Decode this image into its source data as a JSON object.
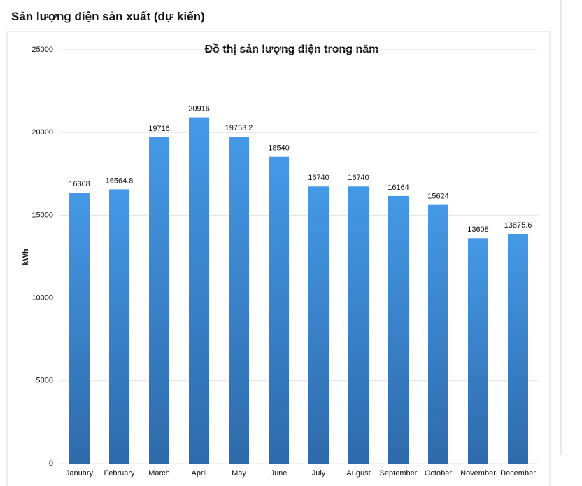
{
  "header": {
    "title": "Sản lượng điện sản xuất (dự kiến)"
  },
  "chart_data": {
    "type": "bar",
    "title": "Đồ thị sản lượng điện trong năm",
    "y_label": "kWh",
    "categories": [
      "January",
      "February",
      "March",
      "April",
      "May",
      "June",
      "July",
      "August",
      "September",
      "October",
      "November",
      "December"
    ],
    "values": [
      16368,
      16564.8,
      19716,
      20916,
      19753.2,
      18540,
      16740,
      16740,
      16164,
      15624,
      13608,
      13875.6
    ],
    "color": "#4599e6",
    "ylim": [
      0,
      25000
    ],
    "yticks": [
      0,
      5000,
      10000,
      15000,
      20000,
      25000
    ],
    "grid": true
  }
}
